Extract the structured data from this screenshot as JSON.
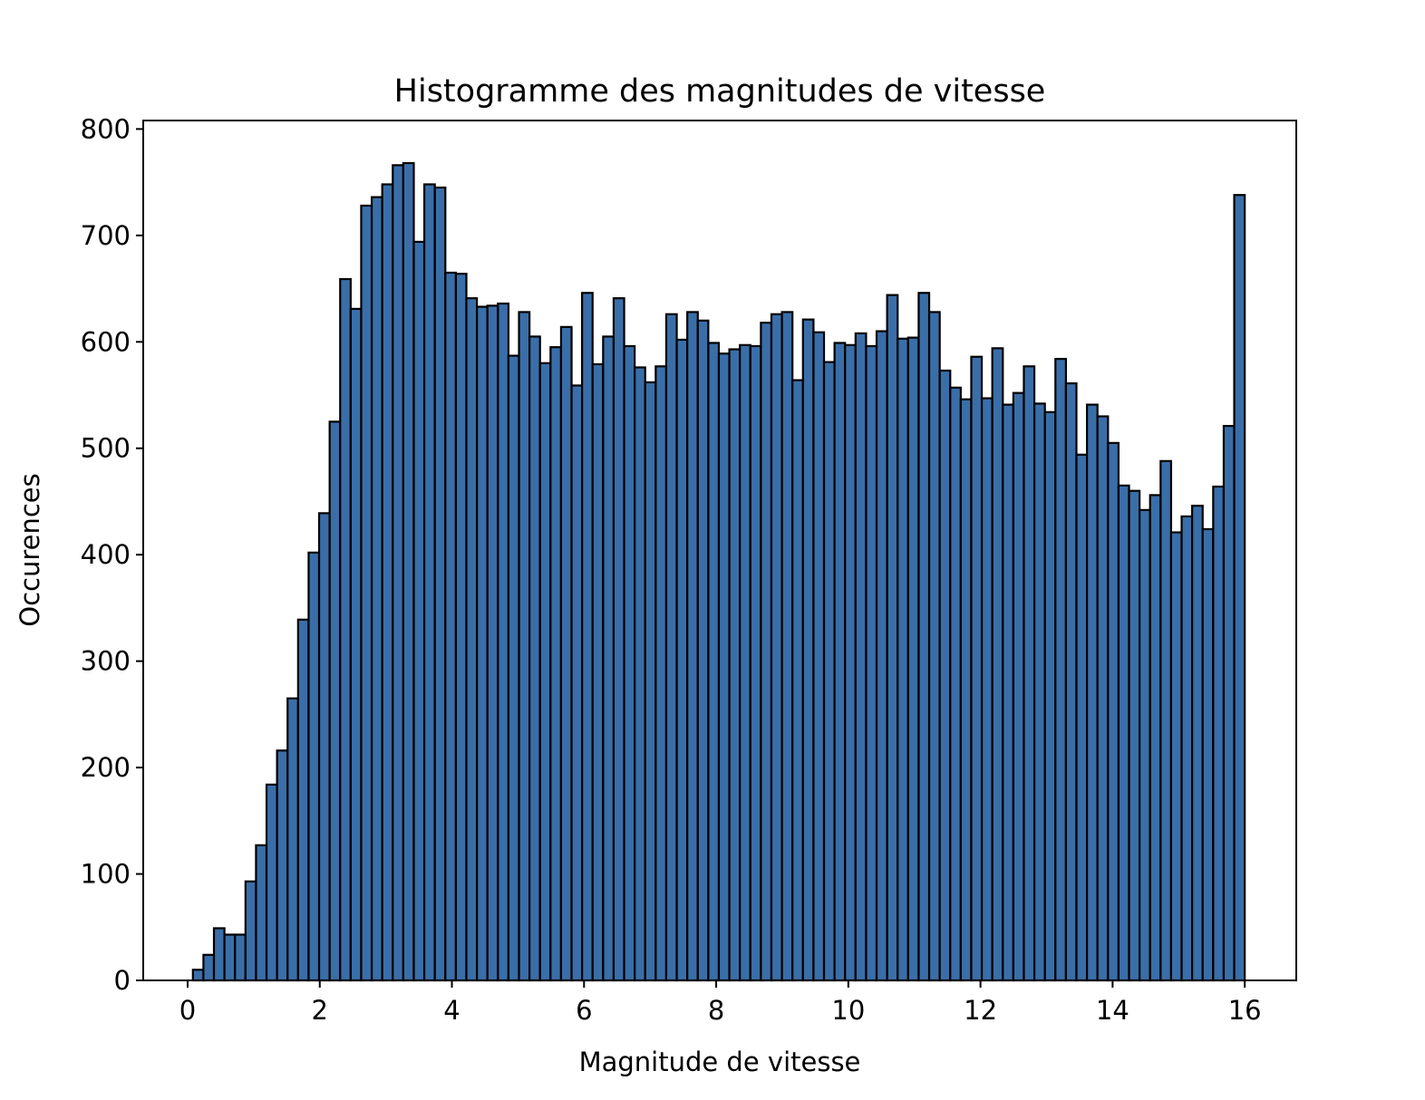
{
  "chart_data": {
    "type": "histogram",
    "title": "Histogramme des magnitudes de vitesse",
    "x_label": "Magnitude de vitesse",
    "y_label": "Occurences",
    "color": "#3a6ea8",
    "edgecolor": "#000000",
    "bins": [
      0.08,
      0.2392,
      0.3984,
      0.5576,
      0.7168,
      0.876,
      1.0352,
      1.1944,
      1.3536,
      1.5128,
      1.672,
      1.8312,
      1.9904,
      2.1496,
      2.3088,
      2.468,
      2.6272,
      2.7864,
      2.9456,
      3.1048,
      3.264,
      3.4232,
      3.5824,
      3.7416,
      3.9008,
      4.06,
      4.2192,
      4.3784,
      4.5376,
      4.6968,
      4.856,
      5.0152,
      5.1744,
      5.3336,
      5.4928,
      5.652,
      5.8112,
      5.9704,
      6.1296,
      6.2888,
      6.448,
      6.6072,
      6.7664,
      6.9256,
      7.0848,
      7.244,
      7.4032,
      7.5624,
      7.7216,
      7.8808,
      8.04,
      8.1992,
      8.3584,
      8.5176,
      8.6768,
      8.836,
      8.9952,
      9.1544,
      9.3136,
      9.4728,
      9.632,
      9.7912,
      9.9504,
      10.1096,
      10.2688,
      10.428,
      10.5872,
      10.7464,
      10.9056,
      11.0648,
      11.224,
      11.3832,
      11.5424,
      11.7016,
      11.8608,
      12.02,
      12.1792,
      12.3384,
      12.4976,
      12.6568,
      12.816,
      12.9752,
      13.1344,
      13.2936,
      13.4528,
      13.612,
      13.7712,
      13.9304,
      14.0896,
      14.2488,
      14.408,
      14.5672,
      14.7264,
      14.8856,
      15.0448,
      15.204,
      15.3632,
      15.5224,
      15.6816,
      15.8408,
      16.0
    ],
    "values": [
      10,
      24,
      49,
      43,
      43,
      93,
      127,
      184,
      216,
      265,
      339,
      402,
      439,
      525,
      659,
      631,
      728,
      736,
      748,
      766,
      768,
      694,
      748,
      745,
      665,
      664,
      641,
      633,
      634,
      636,
      587,
      628,
      605,
      580,
      595,
      614,
      559,
      646,
      579,
      605,
      641,
      596,
      576,
      562,
      577,
      626,
      602,
      628,
      620,
      599,
      589,
      593,
      597,
      596,
      618,
      626,
      628,
      564,
      621,
      609,
      581,
      599,
      597,
      608,
      596,
      610,
      644,
      603,
      604,
      646,
      628,
      573,
      557,
      546,
      586,
      547,
      594,
      541,
      552,
      577,
      542,
      534,
      584,
      561,
      494,
      541,
      530,
      505,
      465,
      460,
      442,
      456,
      488,
      421,
      436,
      446,
      424,
      464,
      521,
      738
    ],
    "xlim": [
      -0.672,
      16.78
    ],
    "ylim": [
      0,
      808
    ],
    "xticks": [
      0,
      2,
      4,
      6,
      8,
      10,
      12,
      14,
      16
    ],
    "yticks": [
      0,
      100,
      200,
      300,
      400,
      500,
      600,
      700,
      800
    ]
  }
}
